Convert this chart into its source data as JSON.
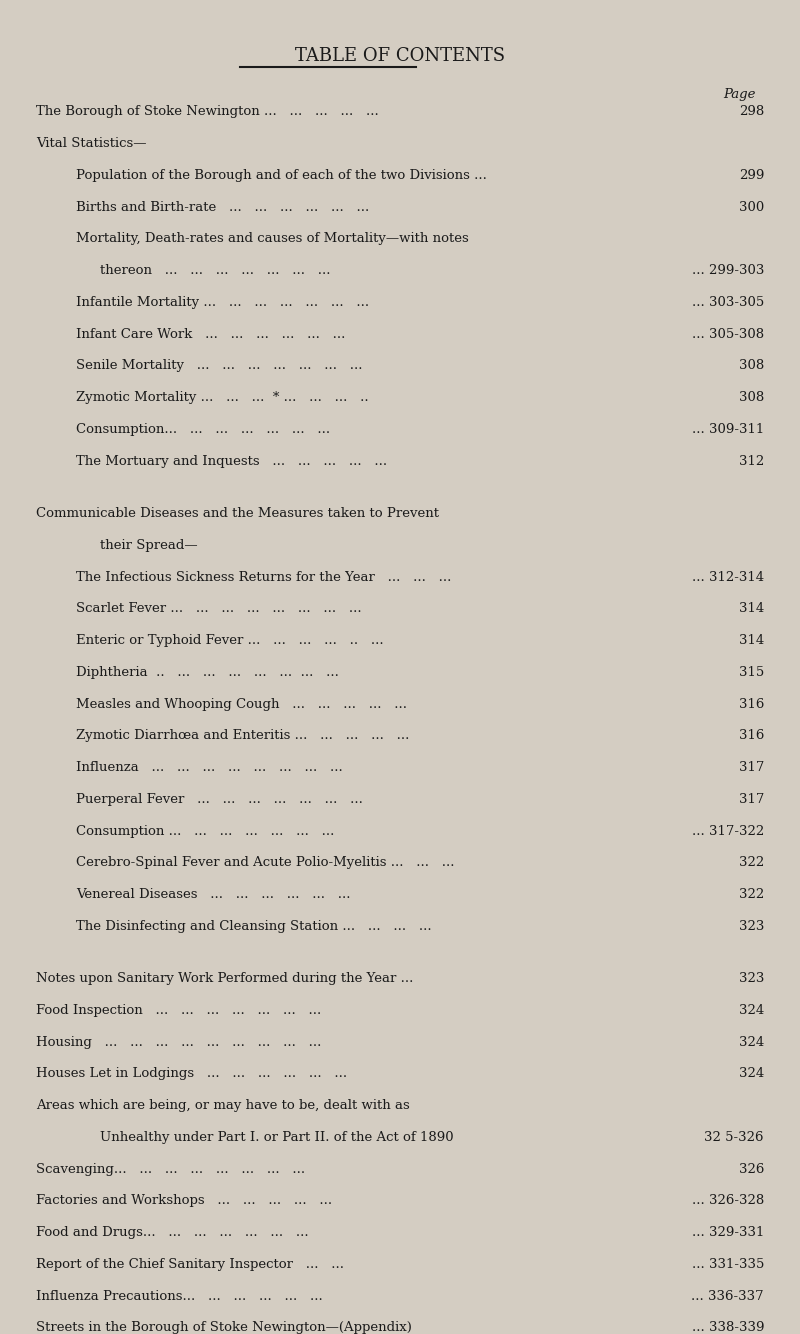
{
  "title": "TABLE OF CONTENTS",
  "bg_color": "#d4cdc2",
  "text_color": "#1a1a1a",
  "page_label": "Page",
  "entries": [
    {
      "indent": 0,
      "style": "smallcaps",
      "text": "The Borough of Stoke Newington ...   ...   ...   ...   ...",
      "page": "298"
    },
    {
      "indent": 0,
      "style": "smallcaps",
      "text": "Vital Statistics—",
      "page": ""
    },
    {
      "indent": 1,
      "style": "normal",
      "text": "Population of the Borough and of each of the two Divisions ...",
      "page": "299"
    },
    {
      "indent": 1,
      "style": "normal",
      "text": "Births and Birth-rate   ...   ...   ...   ...   ...   ...",
      "page": "300"
    },
    {
      "indent": 1,
      "style": "normal",
      "text": "Mortality, Death-rates and causes of Mortality—with notes",
      "page": ""
    },
    {
      "indent": 2,
      "style": "normal",
      "text": "thereon   ...   ...   ...   ...   ...   ...   ...",
      "page": "... 299-303"
    },
    {
      "indent": 1,
      "style": "normal",
      "text": "Infantile Mortality ...   ...   ...   ...   ...   ...   ...",
      "page": "... 303-305"
    },
    {
      "indent": 1,
      "style": "normal",
      "text": "Infant Care Work   ...   ...   ...   ...   ...   ...",
      "page": "... 305-308"
    },
    {
      "indent": 1,
      "style": "normal",
      "text": "Senile Mortality   ...   ...   ...   ...   ...   ...   ...",
      "page": "308"
    },
    {
      "indent": 1,
      "style": "normal",
      "text": "Zymotic Mortality ...   ...   ...  * ...   ...   ...   ..",
      "page": "308"
    },
    {
      "indent": 1,
      "style": "normal",
      "text": "Consumption...   ...   ...   ...   ...   ...   ...",
      "page": "... 309-311"
    },
    {
      "indent": 1,
      "style": "normal",
      "text": "The Mortuary and Inquests   ...   ...   ...   ...   ...",
      "page": "312"
    },
    {
      "indent": -1,
      "style": "blank",
      "text": "",
      "page": ""
    },
    {
      "indent": 0,
      "style": "smallcaps",
      "text": "Communicable Diseases and the Measures taken to Prevent",
      "page": ""
    },
    {
      "indent": 2,
      "style": "smallcaps_indent",
      "text": "their Spread—",
      "page": ""
    },
    {
      "indent": 1,
      "style": "normal",
      "text": "The Infectious Sickness Returns for the Year   ...   ...   ...",
      "page": "... 312-314"
    },
    {
      "indent": 1,
      "style": "normal",
      "text": "Scarlet Fever ...   ...   ...   ...   ...   ...   ...   ...",
      "page": "314"
    },
    {
      "indent": 1,
      "style": "normal",
      "text": "Enteric or Typhoid Fever ...   ...   ...   ...   ..   ...",
      "page": "314"
    },
    {
      "indent": 1,
      "style": "normal",
      "text": "Diphtheria  ..   ...   ...   ...   ...   ...  ...   ...",
      "page": "315"
    },
    {
      "indent": 1,
      "style": "normal",
      "text": "Measles and Whooping Cough   ...   ...   ...   ...   ...",
      "page": "316"
    },
    {
      "indent": 1,
      "style": "normal",
      "text": "Zymotic Diarrhœa and Enteritis ...   ...   ...   ...   ...",
      "page": "316"
    },
    {
      "indent": 1,
      "style": "normal",
      "text": "Influenza   ...   ...   ...   ...   ...   ...   ...   ...",
      "page": "317"
    },
    {
      "indent": 1,
      "style": "normal",
      "text": "Puerperal Fever   ...   ...   ...   ...   ...   ...   ...",
      "page": "317"
    },
    {
      "indent": 1,
      "style": "normal",
      "text": "Consumption ...   ...   ...   ...   ...   ...   ...",
      "page": "... 317-322"
    },
    {
      "indent": 1,
      "style": "normal",
      "text": "Cerebro-Spinal Fever and Acute Polio-Myelitis ...   ...   ...",
      "page": "322"
    },
    {
      "indent": 1,
      "style": "normal",
      "text": "Venereal Diseases   ...   ...   ...   ...   ...   ...",
      "page": "322"
    },
    {
      "indent": 1,
      "style": "normal",
      "text": "The Disinfecting and Cleansing Station ...   ...   ...   ...",
      "page": "323"
    },
    {
      "indent": -1,
      "style": "blank",
      "text": "",
      "page": ""
    },
    {
      "indent": 0,
      "style": "smallcaps",
      "text": "Notes upon Sanitary Work Performed during the Year ...",
      "page": "323"
    },
    {
      "indent": 0,
      "style": "smallcaps",
      "text": "Food Inspection   ...   ...   ...   ...   ...   ...   ...",
      "page": "324"
    },
    {
      "indent": 0,
      "style": "smallcaps",
      "text": "Housing   ...   ...   ...   ...   ...   ...   ...   ...   ...",
      "page": "324"
    },
    {
      "indent": 0,
      "style": "smallcaps",
      "text": "Houses Let in Lodgings   ...   ...   ...   ...   ...   ...",
      "page": "324"
    },
    {
      "indent": 0,
      "style": "smallcaps",
      "text": "Areas which are being, or may have to be, dealt with as",
      "page": ""
    },
    {
      "indent": 2,
      "style": "smallcaps_indent",
      "text": "Unhealthy under Part I. or Part II. of the Act of 1890",
      "page": "32 5-326"
    },
    {
      "indent": 0,
      "style": "smallcaps",
      "text": "Scavenging...   ...   ...   ...   ...   ...   ...   ...",
      "page": "326"
    },
    {
      "indent": 0,
      "style": "smallcaps",
      "text": "Factories and Workshops   ...   ...   ...   ...   ...",
      "page": "... 326-328"
    },
    {
      "indent": 0,
      "style": "smallcaps",
      "text": "Food and Drugs...   ...   ...   ...   ...   ...   ...",
      "page": "... 329-331"
    },
    {
      "indent": 0,
      "style": "smallcaps",
      "text": "Report of the Chief Sanitary Inspector   ...   ...",
      "page": "... 331-335"
    },
    {
      "indent": 0,
      "style": "smallcaps",
      "text": "Influenza Precautions...   ...   ...   ...   ...   ...",
      "page": "... 336-337"
    },
    {
      "indent": 0,
      "style": "smallcaps",
      "text": "Streets in the Borough of Stoke Newington—(Appendix)",
      "page": "... 338-339"
    }
  ]
}
